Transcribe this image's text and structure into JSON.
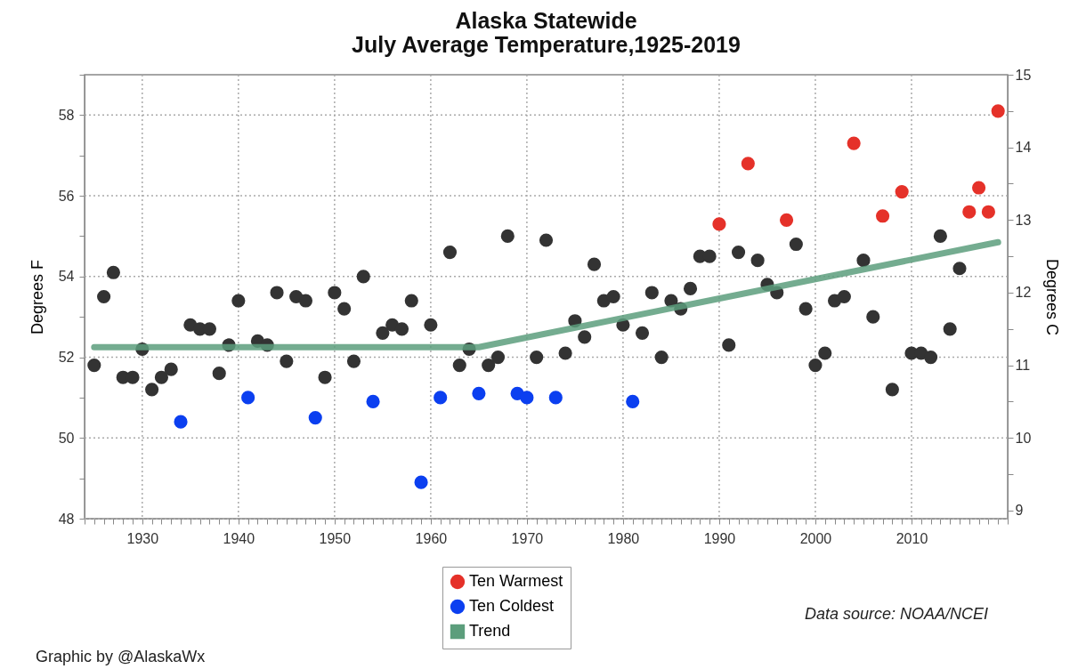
{
  "chart_data": {
    "type": "scatter",
    "title": "Alaska Statewide\nJuly Average Temperature,1925-2019",
    "ylabel": "Degrees F",
    "y2label": "Degrees C",
    "annotations": [
      "Data source: NOAA/NCEI",
      "Graphic by @AlaskaWx"
    ],
    "xlim": [
      1924,
      2020
    ],
    "xticks": [
      {
        "value": 1924,
        "label": null
      },
      {
        "value": 1925,
        "label": null
      },
      {
        "value": 1926,
        "label": null
      },
      {
        "value": 1927,
        "label": null
      },
      {
        "value": 1928,
        "label": null
      },
      {
        "value": 1929,
        "label": null
      },
      1930,
      {
        "value": 1931,
        "label": null
      },
      {
        "value": 1932,
        "label": null
      },
      {
        "value": 1933,
        "label": null
      },
      {
        "value": 1934,
        "label": null
      },
      {
        "value": 1935,
        "label": null
      },
      {
        "value": 1936,
        "label": null
      },
      {
        "value": 1937,
        "label": null
      },
      {
        "value": 1938,
        "label": null
      },
      {
        "value": 1939,
        "label": null
      },
      1940,
      {
        "value": 1941,
        "label": null
      },
      {
        "value": 1942,
        "label": null
      },
      {
        "value": 1943,
        "label": null
      },
      {
        "value": 1944,
        "label": null
      },
      {
        "value": 1945,
        "label": null
      },
      {
        "value": 1946,
        "label": null
      },
      {
        "value": 1947,
        "label": null
      },
      {
        "value": 1948,
        "label": null
      },
      {
        "value": 1949,
        "label": null
      },
      1950,
      {
        "value": 1951,
        "label": null
      },
      {
        "value": 1952,
        "label": null
      },
      {
        "value": 1953,
        "label": null
      },
      {
        "value": 1954,
        "label": null
      },
      {
        "value": 1955,
        "label": null
      },
      {
        "value": 1956,
        "label": null
      },
      {
        "value": 1957,
        "label": null
      },
      {
        "value": 1958,
        "label": null
      },
      {
        "value": 1959,
        "label": null
      },
      1960,
      {
        "value": 1961,
        "label": null
      },
      {
        "value": 1962,
        "label": null
      },
      {
        "value": 1963,
        "label": null
      },
      {
        "value": 1964,
        "label": null
      },
      {
        "value": 1965,
        "label": null
      },
      {
        "value": 1966,
        "label": null
      },
      {
        "value": 1967,
        "label": null
      },
      {
        "value": 1968,
        "label": null
      },
      {
        "value": 1969,
        "label": null
      },
      1970,
      {
        "value": 1971,
        "label": null
      },
      {
        "value": 1972,
        "label": null
      },
      {
        "value": 1973,
        "label": null
      },
      {
        "value": 1974,
        "label": null
      },
      {
        "value": 1975,
        "label": null
      },
      {
        "value": 1976,
        "label": null
      },
      {
        "value": 1977,
        "label": null
      },
      {
        "value": 1978,
        "label": null
      },
      {
        "value": 1979,
        "label": null
      },
      1980,
      {
        "value": 1981,
        "label": null
      },
      {
        "value": 1982,
        "label": null
      },
      {
        "value": 1983,
        "label": null
      },
      {
        "value": 1984,
        "label": null
      },
      {
        "value": 1985,
        "label": null
      },
      {
        "value": 1986,
        "label": null
      },
      {
        "value": 1987,
        "label": null
      },
      {
        "value": 1988,
        "label": null
      },
      {
        "value": 1989,
        "label": null
      },
      1990,
      {
        "value": 1991,
        "label": null
      },
      {
        "value": 1992,
        "label": null
      },
      {
        "value": 1993,
        "label": null
      },
      {
        "value": 1994,
        "label": null
      },
      {
        "value": 1995,
        "label": null
      },
      {
        "value": 1996,
        "label": null
      },
      {
        "value": 1997,
        "label": null
      },
      {
        "value": 1998,
        "label": null
      },
      {
        "value": 1999,
        "label": null
      },
      2000,
      {
        "value": 2001,
        "label": null
      },
      {
        "value": 2002,
        "label": null
      },
      {
        "value": 2003,
        "label": null
      },
      {
        "value": 2004,
        "label": null
      },
      {
        "value": 2005,
        "label": null
      },
      {
        "value": 2006,
        "label": null
      },
      {
        "value": 2007,
        "label": null
      },
      {
        "value": 2008,
        "label": null
      },
      {
        "value": 2009,
        "label": null
      },
      2010,
      {
        "value": 2011,
        "label": null
      },
      {
        "value": 2012,
        "label": null
      },
      {
        "value": 2013,
        "label": null
      },
      {
        "value": 2014,
        "label": null
      },
      {
        "value": 2015,
        "label": null
      },
      {
        "value": 2016,
        "label": null
      },
      {
        "value": 2017,
        "label": null
      },
      {
        "value": 2018,
        "label": null
      },
      {
        "value": 2019,
        "label": null
      },
      {
        "value": 2020,
        "label": null
      }
    ],
    "ylim": [
      48,
      59
    ],
    "yticks": [
      48,
      {
        "value": 49,
        "label": null
      },
      50,
      {
        "value": 51,
        "label": null
      },
      52,
      {
        "value": 53,
        "label": null
      },
      54,
      {
        "value": 55,
        "label": null
      },
      56,
      {
        "value": 57,
        "label": null
      },
      58,
      {
        "value": 59,
        "label": null
      }
    ],
    "y2lim": [
      8.889,
      15
    ],
    "y2ticks": [
      9,
      {
        "value": 9.5,
        "label": null
      },
      10,
      {
        "value": 10.5,
        "label": null
      },
      11,
      {
        "value": 11.5,
        "label": null
      },
      12,
      {
        "value": 12.5,
        "label": null
      },
      13,
      {
        "value": 13.5,
        "label": null
      },
      14,
      {
        "value": 14.5,
        "label": null
      },
      15
    ],
    "grid": true,
    "legend": "bottom",
    "series": [
      {
        "type": "scatter",
        "marker": "circle",
        "color": "#333333",
        "x": [
          1925,
          1926,
          1927,
          1928,
          1929,
          1930,
          1931,
          1932,
          1933,
          1935,
          1936,
          1937,
          1938,
          1939,
          1940,
          1942,
          1943,
          1944,
          1945,
          1946,
          1947,
          1949,
          1950,
          1951,
          1952,
          1953,
          1955,
          1956,
          1957,
          1958,
          1960,
          1962,
          1963,
          1964,
          1966,
          1967,
          1968,
          1971,
          1972,
          1974,
          1975,
          1976,
          1977,
          1978,
          1979,
          1980,
          1982,
          1983,
          1984,
          1985,
          1986,
          1987,
          1988,
          1989,
          1991,
          1992,
          1994,
          1995,
          1996,
          1998,
          1999,
          2000,
          2001,
          2002,
          2003,
          2005,
          2006,
          2008,
          2010,
          2011,
          2012,
          2013,
          2014,
          2015
        ],
        "values": [
          51.8,
          53.5,
          54.1,
          51.5,
          51.5,
          52.2,
          51.2,
          51.5,
          51.7,
          52.8,
          52.7,
          52.7,
          51.6,
          52.3,
          53.4,
          52.4,
          52.3,
          53.6,
          51.9,
          53.5,
          53.4,
          51.5,
          53.6,
          53.2,
          51.9,
          54.0,
          52.6,
          52.8,
          52.7,
          53.4,
          52.8,
          54.6,
          51.8,
          52.2,
          51.8,
          52.0,
          55.0,
          52.0,
          54.9,
          52.1,
          52.9,
          52.5,
          54.3,
          53.4,
          53.5,
          52.8,
          52.6,
          53.6,
          52.0,
          53.4,
          53.2,
          53.7,
          54.5,
          54.5,
          52.3,
          54.6,
          54.4,
          53.8,
          53.6,
          54.8,
          53.2,
          51.8,
          52.1,
          53.4,
          53.5,
          54.4,
          53.0,
          51.2,
          52.1,
          52.1,
          52.0,
          55.0,
          52.7,
          54.2
        ]
      },
      {
        "type": "scatter",
        "marker": "circle",
        "name": "Ten Warmest",
        "color": "#e53129",
        "x": [
          1990,
          1993,
          1997,
          2004,
          2007,
          2009,
          2016,
          2017,
          2018,
          2019
        ],
        "values": [
          55.3,
          56.8,
          55.4,
          57.3,
          55.5,
          56.1,
          55.6,
          56.2,
          55.6,
          58.1
        ]
      },
      {
        "type": "scatter",
        "marker": "circle",
        "name": "Ten Coldest",
        "color": "#0b3ff0",
        "x": [
          1934,
          1941,
          1948,
          1954,
          1959,
          1961,
          1965,
          1969,
          1970,
          1973,
          1981
        ],
        "values": [
          50.4,
          51.0,
          50.5,
          50.9,
          48.9,
          51.0,
          51.1,
          51.1,
          51.0,
          51.0,
          50.9
        ]
      },
      {
        "type": "line",
        "name": "Trend",
        "color": "#5c9e7c",
        "x": [
          1925,
          1965,
          2019
        ],
        "values": [
          52.25,
          52.25,
          54.85
        ]
      }
    ]
  }
}
